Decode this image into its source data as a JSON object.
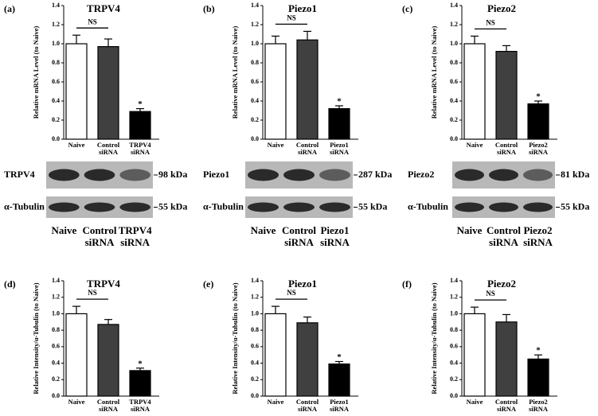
{
  "chart_data": [
    {
      "type": "bar",
      "panel_label": "(a)",
      "title": "TRPV4",
      "y_label": "Relative mRNA Level (to Naive)",
      "categories": [
        "Naive",
        "Control siRNA",
        "TRPV4 siRNA"
      ],
      "values": [
        1.0,
        0.97,
        0.29
      ],
      "errors": [
        0.09,
        0.08,
        0.03
      ],
      "colors": [
        "#ffffff",
        "#404040",
        "#000000"
      ],
      "ylim": [
        0,
        1.4
      ],
      "yticks": [
        {
          "value": 0,
          "label": "0.0"
        },
        0.2,
        0.4,
        0.6,
        0.8,
        {
          "value": 1,
          "label": "1.0"
        },
        1.2,
        1.4
      ],
      "ns_label": "NS",
      "sig_label": "*"
    },
    {
      "type": "bar",
      "panel_label": "(b)",
      "title": "Piezo1",
      "y_label": "Relative mRNA Level (to Naive)",
      "categories": [
        "Naive",
        "Control siRNA",
        "Piezo1 siRNA"
      ],
      "values": [
        1.0,
        1.04,
        0.32
      ],
      "errors": [
        0.08,
        0.09,
        0.03
      ],
      "colors": [
        "#ffffff",
        "#404040",
        "#000000"
      ],
      "ylim": [
        0,
        1.4
      ],
      "yticks": [
        {
          "value": 0,
          "label": "0.0"
        },
        0.2,
        0.4,
        0.6,
        0.8,
        {
          "value": 1,
          "label": "1.0"
        },
        1.2,
        1.4
      ],
      "ns_label": "NS",
      "sig_label": "*"
    },
    {
      "type": "bar",
      "panel_label": "(c)",
      "title": "Piezo2",
      "y_label": "Relative mRNA Level (to Naive)",
      "categories": [
        "Naive",
        "Control siRNA",
        "Piezo2 siRNA"
      ],
      "values": [
        1.0,
        0.92,
        0.37
      ],
      "errors": [
        0.08,
        0.06,
        0.03
      ],
      "colors": [
        "#ffffff",
        "#404040",
        "#000000"
      ],
      "ylim": [
        0,
        1.4
      ],
      "yticks": [
        {
          "value": 0,
          "label": "0.0"
        },
        0.2,
        0.4,
        0.6,
        0.8,
        {
          "value": 1,
          "label": "1.0"
        },
        1.2,
        1.4
      ],
      "ns_label": "NS",
      "sig_label": "*"
    },
    {
      "type": "bar",
      "panel_label": "(d)",
      "title": "TRPV4",
      "y_label": "Relative Intensity/α-Tubulin (to Naive)",
      "categories": [
        "Naive",
        "Control siRNA",
        "TRPV4 siRNA"
      ],
      "values": [
        1.0,
        0.87,
        0.31
      ],
      "errors": [
        0.09,
        0.06,
        0.03
      ],
      "colors": [
        "#ffffff",
        "#404040",
        "#000000"
      ],
      "ylim": [
        0,
        1.4
      ],
      "yticks": [
        {
          "value": 0,
          "label": "0.0"
        },
        0.2,
        0.4,
        0.6,
        0.8,
        {
          "value": 1,
          "label": "1.0"
        },
        1.2,
        1.4
      ],
      "ns_label": "NS",
      "sig_label": "*"
    },
    {
      "type": "bar",
      "panel_label": "(e)",
      "title": "Piezo1",
      "y_label": "Relative Intensity/α-Tubulin (to Naive)",
      "categories": [
        "Naive",
        "Control siRNA",
        "Piezo1 siRNA"
      ],
      "values": [
        1.0,
        0.89,
        0.39
      ],
      "errors": [
        0.09,
        0.07,
        0.03
      ],
      "colors": [
        "#ffffff",
        "#404040",
        "#000000"
      ],
      "ylim": [
        0,
        1.4
      ],
      "yticks": [
        {
          "value": 0,
          "label": "0.0"
        },
        0.2,
        0.4,
        0.6,
        0.8,
        {
          "value": 1,
          "label": "1.0"
        },
        1.2,
        1.4
      ],
      "ns_label": "NS",
      "sig_label": "*"
    },
    {
      "type": "bar",
      "panel_label": "(f)",
      "title": "Piezo2",
      "y_label": "Relative Intensity/α-Tubulin (to Naive)",
      "categories": [
        "Naive",
        "Control siRNA",
        "Piezo2 siRNA"
      ],
      "values": [
        1.0,
        0.9,
        0.45
      ],
      "errors": [
        0.08,
        0.09,
        0.05
      ],
      "colors": [
        "#ffffff",
        "#404040",
        "#000000"
      ],
      "ylim": [
        0,
        1.4
      ],
      "yticks": [
        {
          "value": 0,
          "label": "0.0"
        },
        0.2,
        0.4,
        0.6,
        0.8,
        {
          "value": 1,
          "label": "1.0"
        },
        1.2,
        1.4
      ],
      "ns_label": "NS",
      "sig_label": "*"
    }
  ],
  "blots": [
    {
      "rows": [
        {
          "label": "TRPV4",
          "size": "98 kDa"
        },
        {
          "label": "α-Tubulin",
          "size": "55 kDa"
        }
      ],
      "lanes": [
        "Naive",
        "Control siRNA",
        "TRPV4 siRNA"
      ]
    },
    {
      "rows": [
        {
          "label": "Piezo1",
          "size": "287 kDa"
        },
        {
          "label": "α-Tubulin",
          "size": "55 kDa"
        }
      ],
      "lanes": [
        "Naive",
        "Control siRNA",
        "Piezo1 siRNA"
      ]
    },
    {
      "rows": [
        {
          "label": "Piezo2",
          "size": "81 kDa"
        },
        {
          "label": "α-Tubulin",
          "size": "55 kDa"
        }
      ],
      "lanes": [
        "Naive",
        "Control siRNA",
        "Piezo2 siRNA"
      ]
    }
  ]
}
